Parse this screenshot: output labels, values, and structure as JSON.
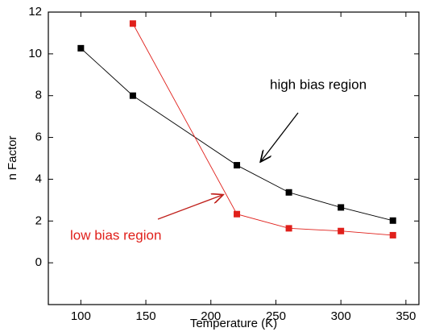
{
  "chart_data": {
    "type": "line",
    "x_label": "Temperature (K)",
    "y_label": "n Factor",
    "xlim": [
      75,
      360
    ],
    "ylim": [
      -2,
      12
    ],
    "xticks": [
      100,
      150,
      200,
      250,
      300,
      350
    ],
    "yticks": [
      0,
      2,
      4,
      6,
      8,
      10,
      12
    ],
    "series": [
      {
        "name": "high bias region",
        "color": "#000000",
        "x": [
          100,
          140,
          220,
          260,
          300,
          340
        ],
        "values": [
          10.27,
          8.0,
          4.67,
          3.37,
          2.65,
          2.02
        ]
      },
      {
        "name": "low bias region",
        "color": "#e0201b",
        "x": [
          140,
          220,
          260,
          300,
          340
        ],
        "values": [
          11.45,
          2.33,
          1.65,
          1.52,
          1.32
        ]
      }
    ]
  }
}
